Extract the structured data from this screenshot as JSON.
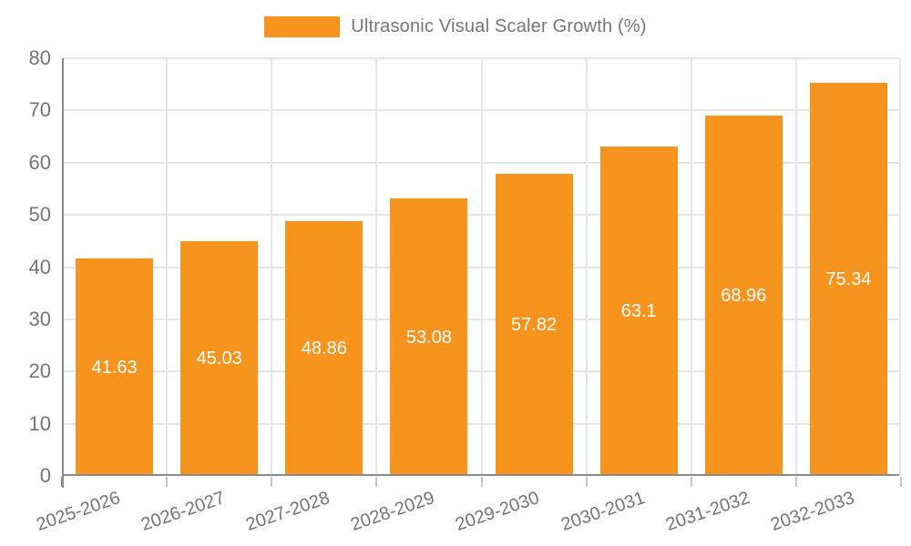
{
  "chart_data": {
    "type": "bar",
    "title": "Ultrasonic Visual Scaler Growth (%)",
    "categories": [
      "2025-2026",
      "2026-2027",
      "2027-2028",
      "2028-2029",
      "2029-2030",
      "2030-2031",
      "2031-2032",
      "2032-2033"
    ],
    "values": [
      41.63,
      45.03,
      48.86,
      53.08,
      57.82,
      63.1,
      68.96,
      75.34
    ],
    "value_labels": [
      "41.63",
      "45.03",
      "48.86",
      "53.08",
      "57.82",
      "63.1",
      "68.96",
      "75.34"
    ],
    "xlabel": "",
    "ylabel": "",
    "ylim": [
      0,
      80
    ],
    "yticks": [
      0,
      10,
      20,
      30,
      40,
      50,
      60,
      70,
      80
    ],
    "grid": true,
    "legend_position": "top-center",
    "x_label_rotation_deg": -19,
    "colors": {
      "bar": "#F7941E",
      "value_label": "#ffffff",
      "axis_text": "#757575",
      "gridline": "#e6e6e6",
      "axis_line": "#8b8b8b",
      "tick": "#c6c6c6",
      "background": "#ffffff"
    }
  }
}
